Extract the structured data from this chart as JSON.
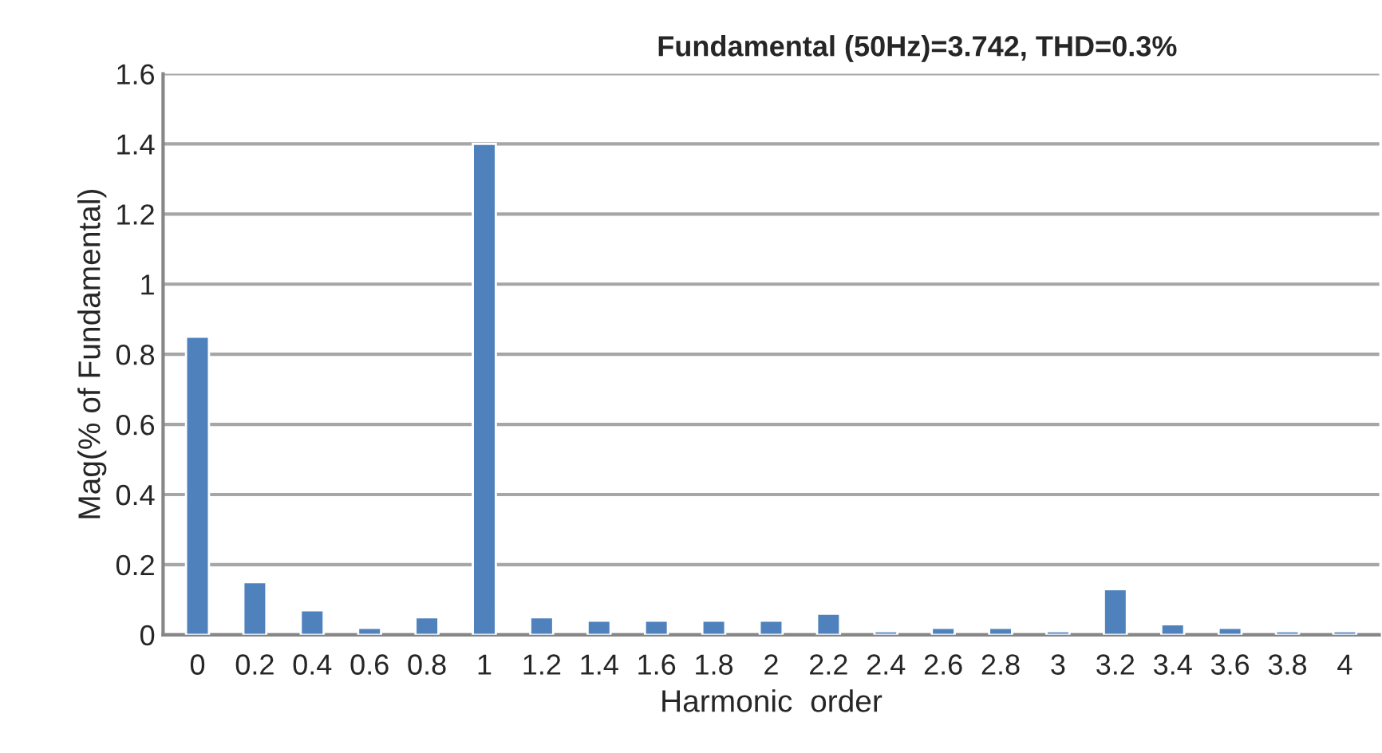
{
  "chart_data": {
    "type": "bar",
    "title": "Fundamental (50Hz)=3.742, THD=0.3%",
    "xlabel": "Harmonic  order",
    "ylabel": "Mag(% of Fundamental)",
    "categories": [
      "0",
      "0.2",
      "0.4",
      "0.6",
      "0.8",
      "1",
      "1.2",
      "1.4",
      "1.6",
      "1.8",
      "2",
      "2.2",
      "2.4",
      "2.6",
      "2.8",
      "3",
      "3.2",
      "3.4",
      "3.6",
      "3.8",
      "4"
    ],
    "values": [
      0.85,
      0.15,
      0.07,
      0.02,
      0.05,
      1.4,
      0.05,
      0.04,
      0.04,
      0.04,
      0.04,
      0.06,
      0.01,
      0.02,
      0.02,
      0.01,
      0.13,
      0.03,
      0.02,
      0.01,
      0.01
    ],
    "color": "#4f81bd",
    "ylim": [
      0,
      1.6
    ],
    "yticks": [
      0,
      0.2,
      0.4,
      0.6,
      0.8,
      1,
      1.2,
      1.4,
      1.6
    ],
    "grid": "y"
  }
}
